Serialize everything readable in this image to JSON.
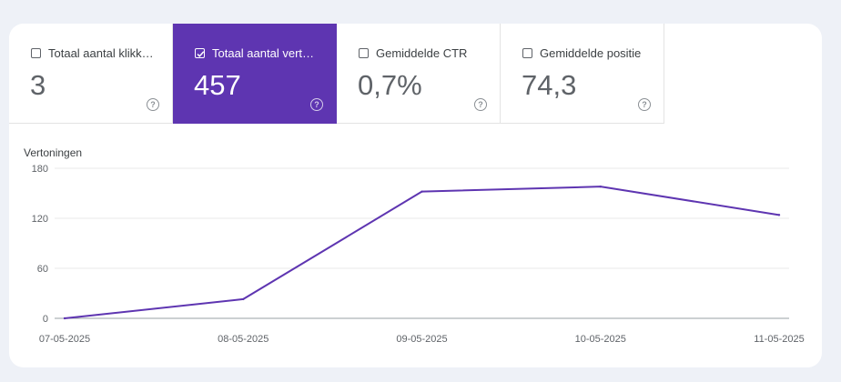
{
  "metrics": [
    {
      "label": "Totaal aantal klikk…",
      "value": "3",
      "checked": false
    },
    {
      "label": "Totaal aantal vert…",
      "value": "457",
      "checked": true
    },
    {
      "label": "Gemiddelde CTR",
      "value": "0,7%",
      "checked": false
    },
    {
      "label": "Gemiddelde positie",
      "value": "74,3",
      "checked": false
    }
  ],
  "help_glyph": "?",
  "colors": {
    "accent": "#5e35b1",
    "line": "#5e35b1"
  },
  "chart_data": {
    "type": "line",
    "ylabel": "Vertoningen",
    "x": [
      "07-05-2025",
      "08-05-2025",
      "09-05-2025",
      "10-05-2025",
      "11-05-2025"
    ],
    "series": [
      {
        "values": [
          0,
          23,
          152,
          158,
          124
        ]
      }
    ],
    "ylim": [
      0,
      180
    ],
    "yticks": [
      0,
      60,
      120,
      180
    ],
    "grid": true
  }
}
